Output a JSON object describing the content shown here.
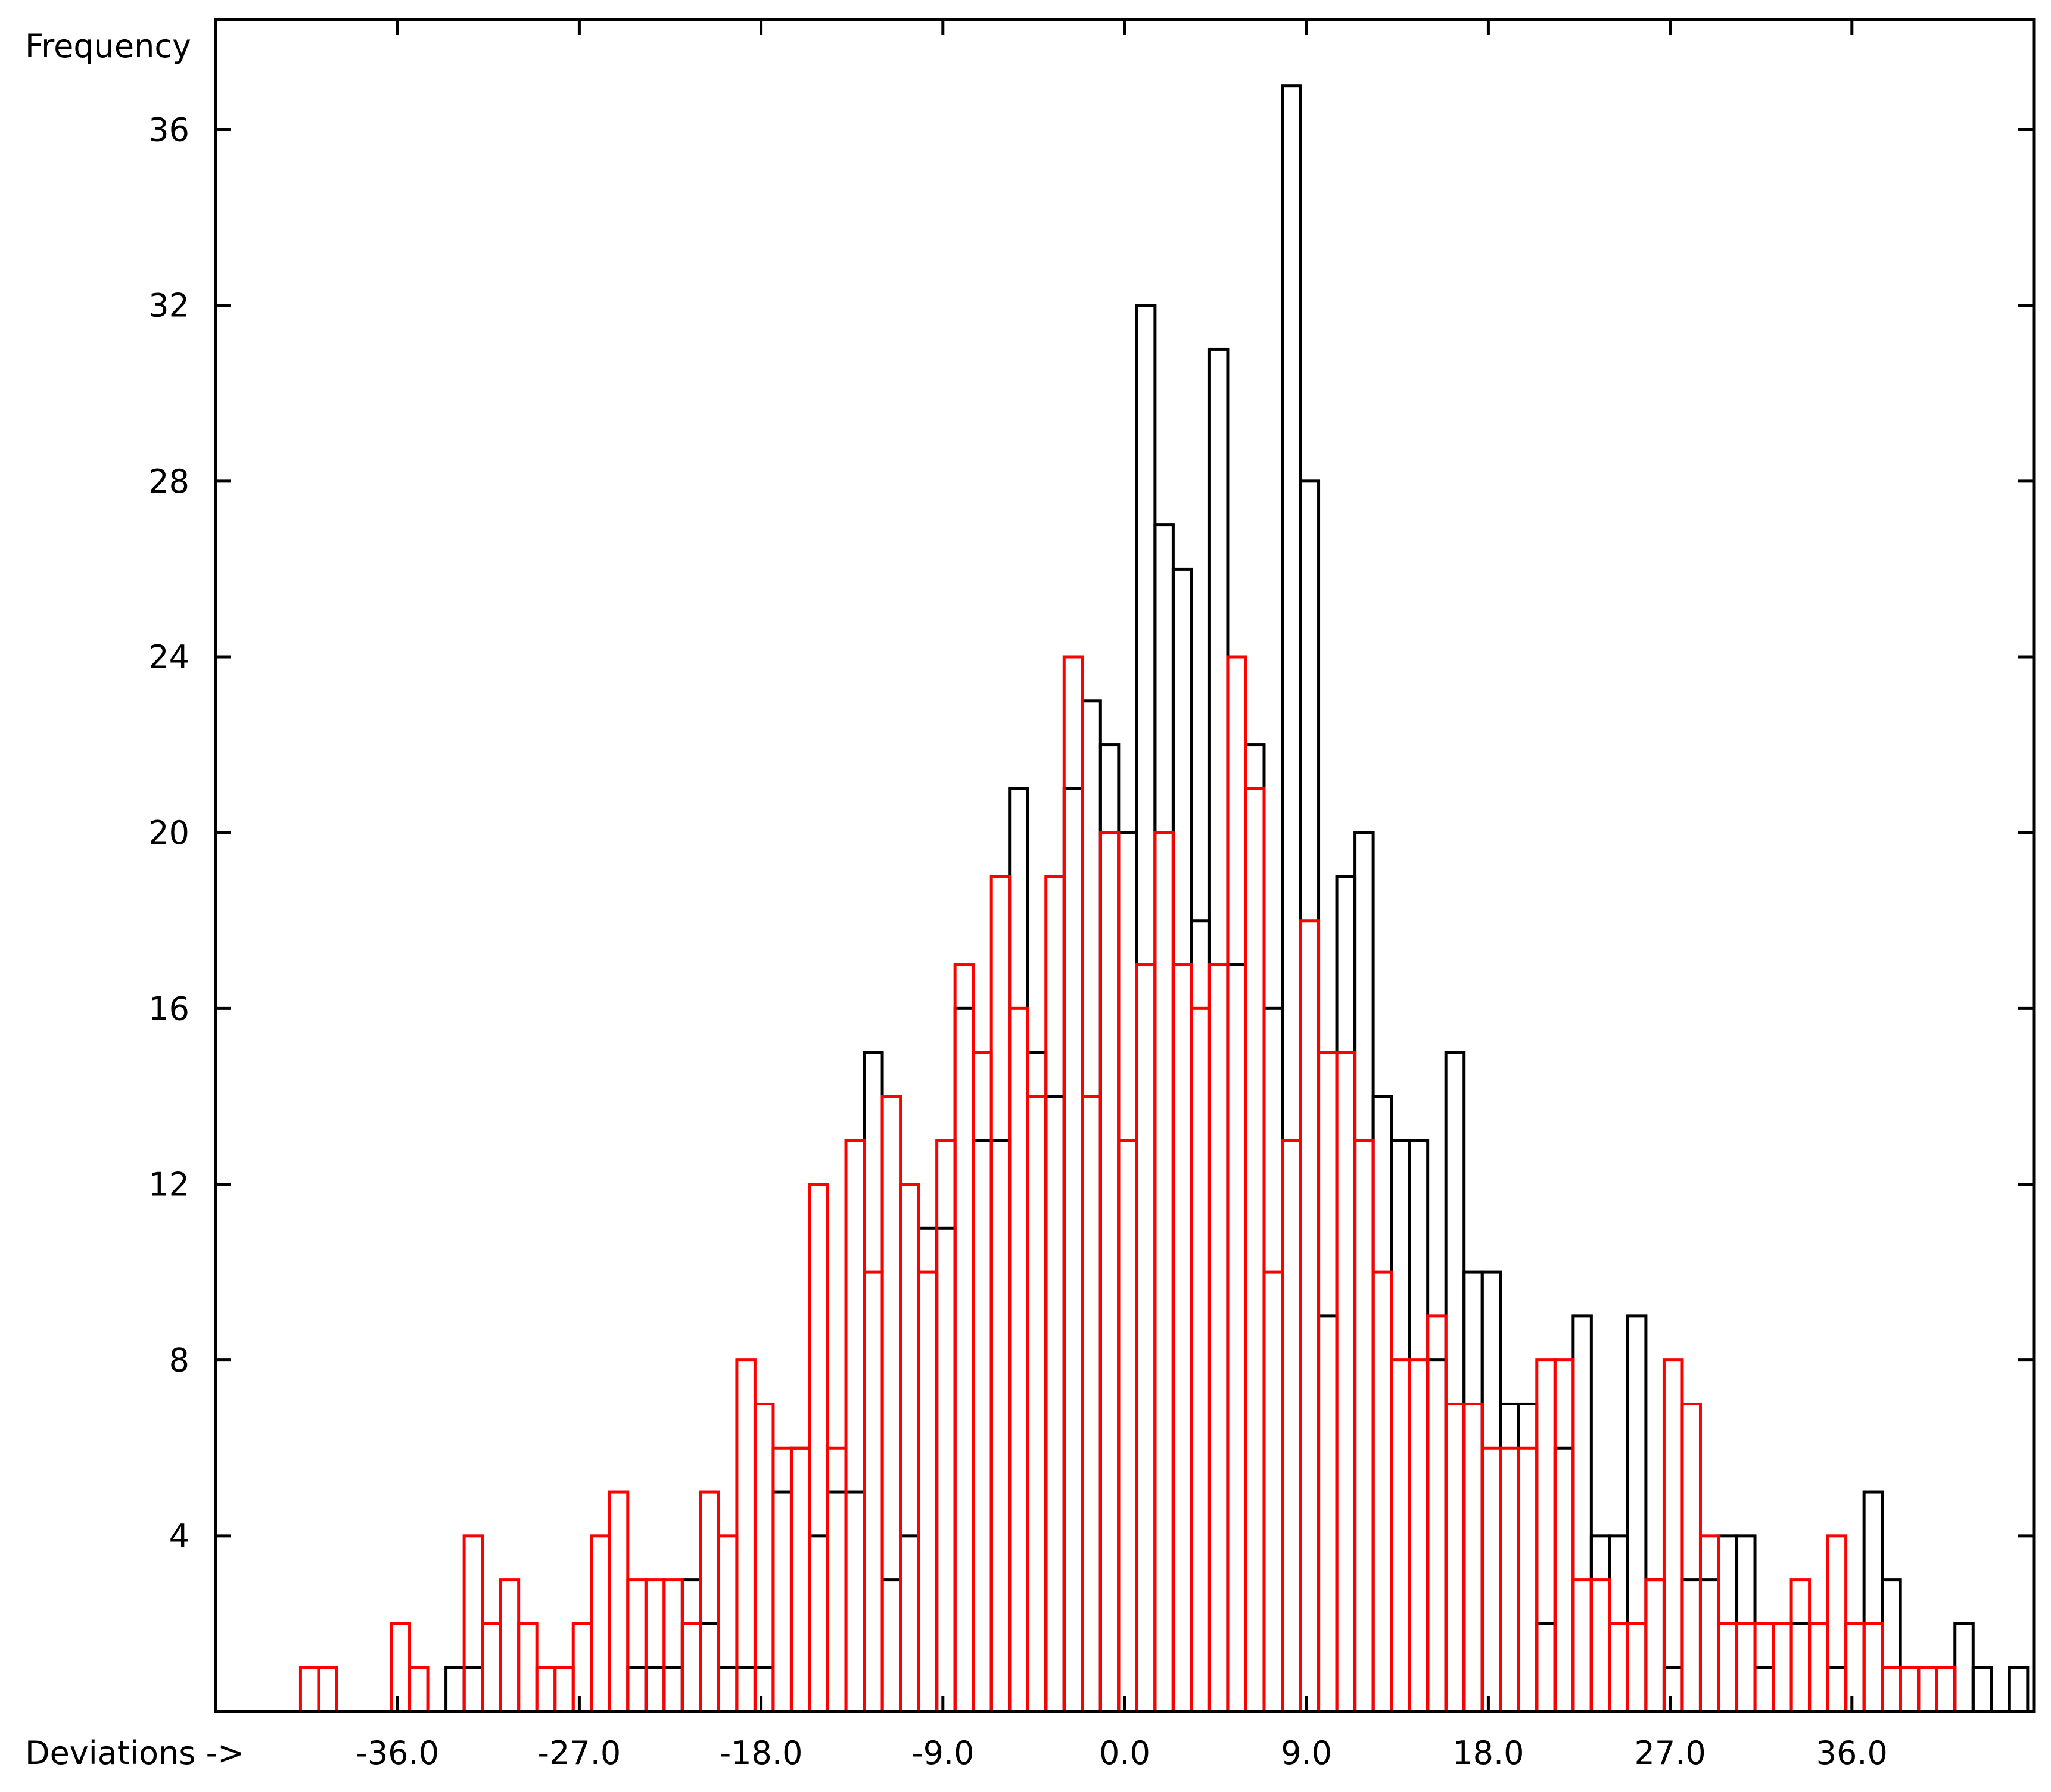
{
  "chart_data": {
    "type": "bar",
    "subtype": "step-histogram-overlay",
    "title": "",
    "xlabel": "Deviations ->",
    "ylabel": "Frequency",
    "xlim": [
      -45.0,
      45.0
    ],
    "ylim": [
      0,
      38.5
    ],
    "x_ticks": [
      -36.0,
      -27.0,
      -18.0,
      -9.0,
      0.0,
      9.0,
      18.0,
      27.0,
      36.0
    ],
    "x_tick_labels": [
      "-36.0",
      "-27.0",
      "-18.0",
      "-9.0",
      "0.0",
      "9.0",
      "18.0",
      "27.0",
      "36.0"
    ],
    "y_ticks": [
      4,
      8,
      12,
      16,
      20,
      24,
      28,
      32,
      36
    ],
    "y_tick_labels": [
      "4",
      "8",
      "12",
      "16",
      "20",
      "24",
      "28",
      "32",
      "36"
    ],
    "bin_width": 0.9,
    "bin_start": -40.8,
    "grid": false,
    "legend": "none",
    "series": [
      {
        "color": "#000000",
        "start_index": 8,
        "values": [
          1,
          1,
          0,
          0,
          0,
          0,
          0,
          0,
          0,
          0,
          1,
          1,
          1,
          3,
          2,
          1,
          1,
          1,
          5,
          6,
          4,
          5,
          5,
          15,
          3,
          4,
          11,
          11,
          16,
          13,
          13,
          21,
          15,
          14,
          21,
          23,
          22,
          20,
          32,
          27,
          26,
          18,
          31,
          17,
          22,
          16,
          37,
          28,
          9,
          19,
          20,
          14,
          13,
          13,
          8,
          15,
          10,
          10,
          7,
          7,
          2,
          6,
          9,
          4,
          4,
          9,
          3,
          1,
          3,
          3,
          4,
          4,
          1,
          0,
          2,
          2,
          1,
          0,
          5,
          3,
          1,
          1,
          1,
          2,
          1,
          0,
          1,
          0
        ]
      },
      {
        "color": "#ff0000",
        "start_index": 0,
        "values": [
          1,
          1,
          0,
          0,
          0,
          2,
          1,
          0,
          0,
          4,
          2,
          3,
          2,
          1,
          1,
          2,
          4,
          5,
          3,
          3,
          3,
          2,
          5,
          4,
          8,
          7,
          6,
          6,
          12,
          6,
          13,
          10,
          14,
          12,
          10,
          13,
          17,
          15,
          19,
          16,
          14,
          19,
          24,
          14,
          20,
          13,
          17,
          20,
          17,
          16,
          17,
          24,
          21,
          10,
          13,
          18,
          15,
          15,
          13,
          10,
          8,
          8,
          9,
          7,
          7,
          6,
          6,
          6,
          8,
          8,
          3,
          3,
          2,
          2,
          3,
          8,
          7,
          4,
          2,
          2,
          2,
          2,
          3,
          2,
          4,
          2,
          2,
          1,
          1,
          1,
          1
        ]
      }
    ]
  },
  "colors": {
    "axis": "#000000",
    "background": "#ffffff"
  }
}
